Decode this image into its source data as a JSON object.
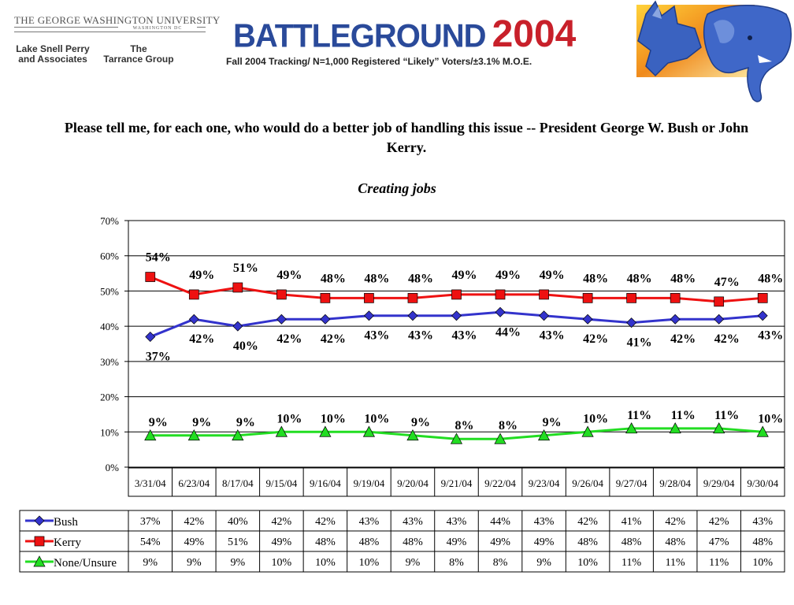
{
  "header": {
    "university_line1": "THE GEORGE WASHINGTON UNIVERSITY",
    "university_line2": "WASHINGTON DC",
    "firm1": "Lake Snell Perry\nand Associates",
    "firm2": "The\nTarrance Group",
    "logo_word": "BATTLEGROUND",
    "logo_year": "2004",
    "tracking": "Fall 2004 Tracking/  N=1,000 Registered  “Likely” Voters/±3.1% M.O.E."
  },
  "question": "Please tell me, for each one, who would do a better job of handling this issue  --  President George W. Bush or John Kerry.",
  "subtitle": "Creating jobs",
  "colors": {
    "bush": "#3333cc",
    "kerry": "#ee1111",
    "none": "#22dd22",
    "logo_blue": "#2a4a9a",
    "logo_red": "#c8202a"
  },
  "icons": [
    "donkey-elephant-mascot"
  ],
  "chart_data": {
    "type": "line",
    "title": "Creating jobs",
    "xlabel": "",
    "ylabel": "",
    "ylim": [
      0,
      70
    ],
    "yticks": [
      0,
      10,
      20,
      30,
      40,
      50,
      60,
      70
    ],
    "ytick_labels": [
      "0%",
      "10%",
      "20%",
      "30%",
      "40%",
      "50%",
      "60%",
      "70%"
    ],
    "grid": true,
    "legend": "data-table-below",
    "categories": [
      "3/31/04",
      "6/23/04",
      "8/17/04",
      "9/15/04",
      "9/16/04",
      "9/19/04",
      "9/20/04",
      "9/21/04",
      "9/22/04",
      "9/23/04",
      "9/26/04",
      "9/27/04",
      "9/28/04",
      "9/29/04",
      "9/30/04"
    ],
    "series": [
      {
        "name": "Bush",
        "marker": "diamond",
        "color": "#3333cc",
        "values": [
          37,
          42,
          40,
          42,
          42,
          43,
          43,
          43,
          44,
          43,
          42,
          41,
          42,
          42,
          43
        ]
      },
      {
        "name": "Kerry",
        "marker": "square",
        "color": "#ee1111",
        "values": [
          54,
          49,
          51,
          49,
          48,
          48,
          48,
          49,
          49,
          49,
          48,
          48,
          48,
          47,
          48
        ]
      },
      {
        "name": "None/Unsure",
        "marker": "triangle",
        "color": "#22dd22",
        "values": [
          9,
          9,
          9,
          10,
          10,
          10,
          9,
          8,
          8,
          9,
          10,
          11,
          11,
          11,
          10
        ]
      }
    ]
  }
}
